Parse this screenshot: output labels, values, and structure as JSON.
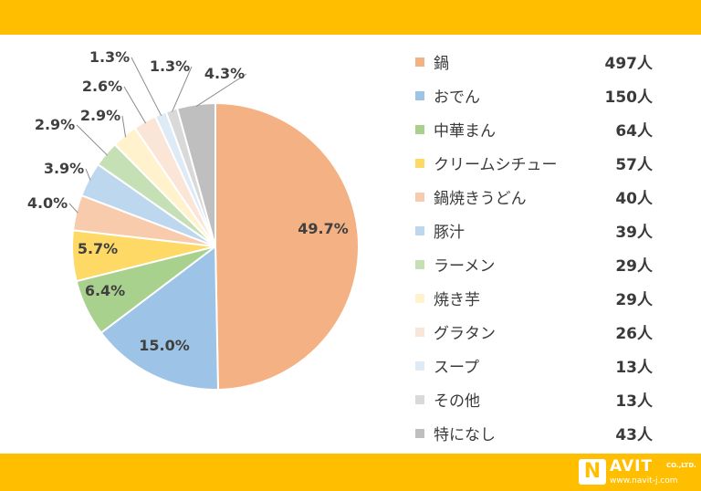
{
  "chart_data": {
    "type": "pie",
    "categories": [
      "鍋",
      "おでん",
      "中華まん",
      "クリームシチュー",
      "鍋焼きうどん",
      "豚汁",
      "ラーメン",
      "焼き芋",
      "グラタン",
      "スープ",
      "その他",
      "特になし"
    ],
    "values": [
      497,
      150,
      64,
      57,
      40,
      39,
      29,
      29,
      26,
      13,
      13,
      43
    ],
    "value_labels": [
      "497人",
      "150人",
      "64人",
      "57人",
      "40人",
      "39人",
      "29人",
      "29人",
      "26人",
      "13人",
      "13人",
      "43人"
    ],
    "percent_labels": [
      "49.7%",
      "15.0%",
      "6.4%",
      "5.7%",
      "4.0%",
      "3.9%",
      "2.9%",
      "2.9%",
      "2.6%",
      "1.3%",
      "1.3%",
      "4.3%"
    ],
    "colors": [
      "#f4b183",
      "#9dc3e6",
      "#a9d18e",
      "#ffd966",
      "#f8cbad",
      "#bdd7ee",
      "#c5e0b4",
      "#fff2cc",
      "#fbe5d6",
      "#deebf7",
      "#d9d9d9",
      "#bfbfbf"
    ],
    "legend_placement": "right",
    "start": "12 o'clock, clockwise"
  },
  "logo": {
    "badge": "N",
    "name": "AVIT",
    "suffix": "CO.,LTD.",
    "url": "www.navit-j.com"
  }
}
